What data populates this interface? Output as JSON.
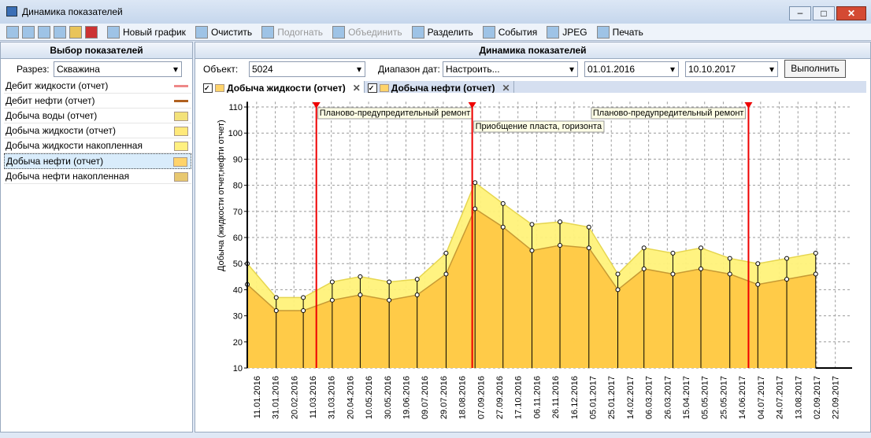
{
  "window": {
    "title": "Динамика показателей"
  },
  "toolbar": {
    "buttons": [
      "Новый график",
      "Очистить",
      "Подогнать",
      "Объединить",
      "Разделить",
      "События",
      "JPEG",
      "Печать"
    ]
  },
  "left_panel": {
    "header": "Выбор показателей",
    "section_label": "Разрез:",
    "section_value": "Скважина",
    "items": [
      "Дебит жидкости (отчет)",
      "Дебит нефти (отчет)",
      "Добыча воды (отчет)",
      "Добыча жидкости (отчет)",
      "Добыча жидкости накопленная",
      "Добыча нефти (отчет)",
      "Добыча нефти накопленная"
    ]
  },
  "right_panel": {
    "header": "Динамика показателей",
    "object_label": "Объект:",
    "object_value": "5024",
    "range_label": "Диапазон дат:",
    "range_value": "Настроить...",
    "date_from": "01.01.2016",
    "date_to": "10.10.2017",
    "run_button": "Выполнить",
    "tabs": [
      "Добыча жидкости (отчет)",
      "Добыча нефти (отчет)"
    ]
  },
  "chart_data": {
    "type": "area",
    "y_label": "Добыча (жидкости отчет,нефти отчет)",
    "x": [
      "01.01.2016",
      "01.02.2016",
      "01.03.2016",
      "01.04.2016",
      "01.05.2016",
      "01.06.2016",
      "01.07.2016",
      "01.08.2016",
      "01.09.2016",
      "01.10.2016",
      "01.11.2016",
      "01.12.2016",
      "01.01.2017",
      "01.02.2017",
      "01.03.2017",
      "01.04.2017",
      "01.05.2017",
      "01.06.2017",
      "01.07.2017",
      "01.08.2017",
      "01.09.2017"
    ],
    "series": [
      {
        "name": "Добыча жидкости (отчет)",
        "color": "#fff27a",
        "values": [
          50,
          37,
          37,
          43,
          45,
          43,
          44,
          54,
          81,
          73,
          65,
          66,
          64,
          46,
          56,
          54,
          56,
          52,
          50,
          52,
          54
        ]
      },
      {
        "name": "Добыча нефти (отчет)",
        "color": "#ffc844",
        "values": [
          42,
          32,
          32,
          36,
          38,
          36,
          38,
          46,
          71,
          64,
          55,
          57,
          56,
          40,
          48,
          46,
          48,
          46,
          42,
          44,
          46
        ]
      }
    ],
    "xlim": [
      "01.01.2016",
      "10.10.2017"
    ],
    "xticks": [
      "11.01.2016",
      "31.01.2016",
      "20.02.2016",
      "11.03.2016",
      "31.03.2016",
      "20.04.2016",
      "10.05.2016",
      "30.05.2016",
      "19.06.2016",
      "09.07.2016",
      "29.07.2016",
      "18.08.2016",
      "07.09.2016",
      "27.09.2016",
      "17.10.2016",
      "06.11.2016",
      "26.11.2016",
      "16.12.2016",
      "05.01.2017",
      "25.01.2017",
      "14.02.2017",
      "06.03.2017",
      "26.03.2017",
      "15.04.2017",
      "05.05.2017",
      "25.05.2017",
      "14.06.2017",
      "04.07.2017",
      "24.07.2017",
      "13.08.2017",
      "02.09.2017",
      "22.09.2017"
    ],
    "ylim": [
      10,
      112
    ],
    "yticks": [
      10,
      20,
      30,
      40,
      50,
      60,
      70,
      80,
      90,
      100,
      110
    ],
    "grid": true,
    "events": [
      {
        "x": "15.03.2016",
        "label": "Планово-предупредительный ремонт"
      },
      {
        "x": "29.08.2016",
        "label": "Приобщение пласта, горизонта"
      },
      {
        "x": "21.06.2017",
        "label": "Планово-предупредительный ремонт"
      }
    ]
  }
}
